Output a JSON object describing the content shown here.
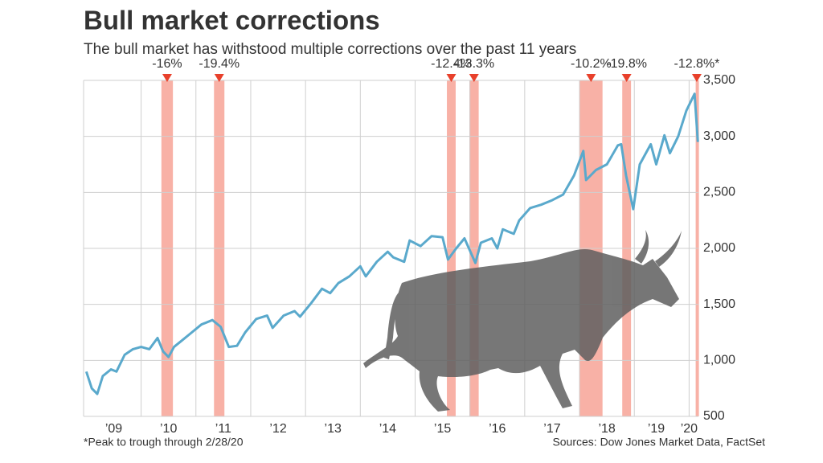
{
  "chart_data": {
    "type": "line",
    "title": "Bull market corrections",
    "subtitle": "The bull market has withstood multiple corrections over the past 11 years",
    "footnote": "*Peak to trough through 2/28/20",
    "source": "Sources: Dow Jones Market Data, FactSet",
    "x": [
      2009.0,
      2009.1,
      2009.2,
      2009.3,
      2009.45,
      2009.55,
      2009.7,
      2009.85,
      2010.0,
      2010.15,
      2010.3,
      2010.4,
      2010.5,
      2010.6,
      2010.75,
      2010.9,
      2011.1,
      2011.3,
      2011.45,
      2011.6,
      2011.75,
      2011.9,
      2012.1,
      2012.3,
      2012.4,
      2012.6,
      2012.8,
      2012.9,
      2013.1,
      2013.3,
      2013.45,
      2013.6,
      2013.8,
      2014.0,
      2014.1,
      2014.3,
      2014.5,
      2014.6,
      2014.8,
      2014.9,
      2015.1,
      2015.3,
      2015.5,
      2015.6,
      2015.75,
      2015.9,
      2016.1,
      2016.2,
      2016.4,
      2016.5,
      2016.6,
      2016.8,
      2016.9,
      2017.1,
      2017.3,
      2017.5,
      2017.7,
      2017.9,
      2018.07,
      2018.12,
      2018.3,
      2018.5,
      2018.7,
      2018.76,
      2018.85,
      2018.98,
      2019.1,
      2019.3,
      2019.4,
      2019.55,
      2019.65,
      2019.8,
      2019.95,
      2020.1,
      2020.16
    ],
    "series": [
      {
        "color": "#5aa9cc",
        "values": [
          900,
          750,
          700,
          860,
          920,
          900,
          1050,
          1100,
          1120,
          1100,
          1200,
          1080,
          1030,
          1120,
          1180,
          1240,
          1320,
          1360,
          1300,
          1120,
          1130,
          1250,
          1370,
          1400,
          1290,
          1400,
          1440,
          1390,
          1510,
          1640,
          1600,
          1690,
          1750,
          1840,
          1750,
          1880,
          1970,
          1920,
          1880,
          2070,
          2020,
          2110,
          2100,
          1900,
          2000,
          2090,
          1870,
          2050,
          2090,
          2000,
          2170,
          2130,
          2250,
          2360,
          2390,
          2430,
          2480,
          2650,
          2870,
          2610,
          2700,
          2750,
          2920,
          2930,
          2650,
          2350,
          2750,
          2930,
          2750,
          3010,
          2850,
          3000,
          3230,
          3380,
          2950
        ]
      }
    ],
    "corrections": {
      "color": "#f7a99c",
      "label_color": "#e8402b",
      "start": [
        2010.37,
        2011.33,
        2015.58,
        2015.99,
        2018.0,
        2018.78,
        2020.12
      ],
      "end": [
        2010.58,
        2011.52,
        2015.74,
        2016.16,
        2018.42,
        2018.94,
        2020.16
      ],
      "values": [
        -16,
        -19.4,
        -12.4,
        -13.3,
        -10.2,
        -19.8,
        -12.8
      ],
      "value_labels": [
        "-16%",
        "-19.4%",
        "-12.4%",
        "-13.3%",
        "-10.2%",
        "-19.8%",
        "-12.8%*"
      ]
    },
    "xlim": [
      2008.95,
      2020.17
    ],
    "xticks": [
      {
        "value": 2009.5,
        "label": "’09"
      },
      {
        "value": 2010.5,
        "label": "’10"
      },
      {
        "value": 2011.5,
        "label": "’11"
      },
      {
        "value": 2012.5,
        "label": "’12"
      },
      {
        "value": 2013.5,
        "label": "’13"
      },
      {
        "value": 2014.5,
        "label": "’14"
      },
      {
        "value": 2015.5,
        "label": "’15"
      },
      {
        "value": 2016.5,
        "label": "’16"
      },
      {
        "value": 2017.5,
        "label": "’17"
      },
      {
        "value": 2018.5,
        "label": "’18"
      },
      {
        "value": 2019.4,
        "label": "’19"
      },
      {
        "value": 2020.0,
        "label": "’20"
      }
    ],
    "xgrid": [
      2010,
      2011,
      2012,
      2013,
      2014,
      2015,
      2016,
      2017,
      2018,
      2019,
      2020
    ],
    "ylim": [
      500,
      3500
    ],
    "yticks": [
      500,
      {
        "value": 1000,
        "label": "1,000"
      },
      {
        "value": 1500,
        "label": "1,500"
      },
      {
        "value": 2000,
        "label": "2,000"
      },
      {
        "value": 2500,
        "label": "2,500"
      },
      {
        "value": 3000,
        "label": "3,000"
      },
      {
        "value": 3500,
        "label": "3,500"
      }
    ],
    "grid": true
  }
}
